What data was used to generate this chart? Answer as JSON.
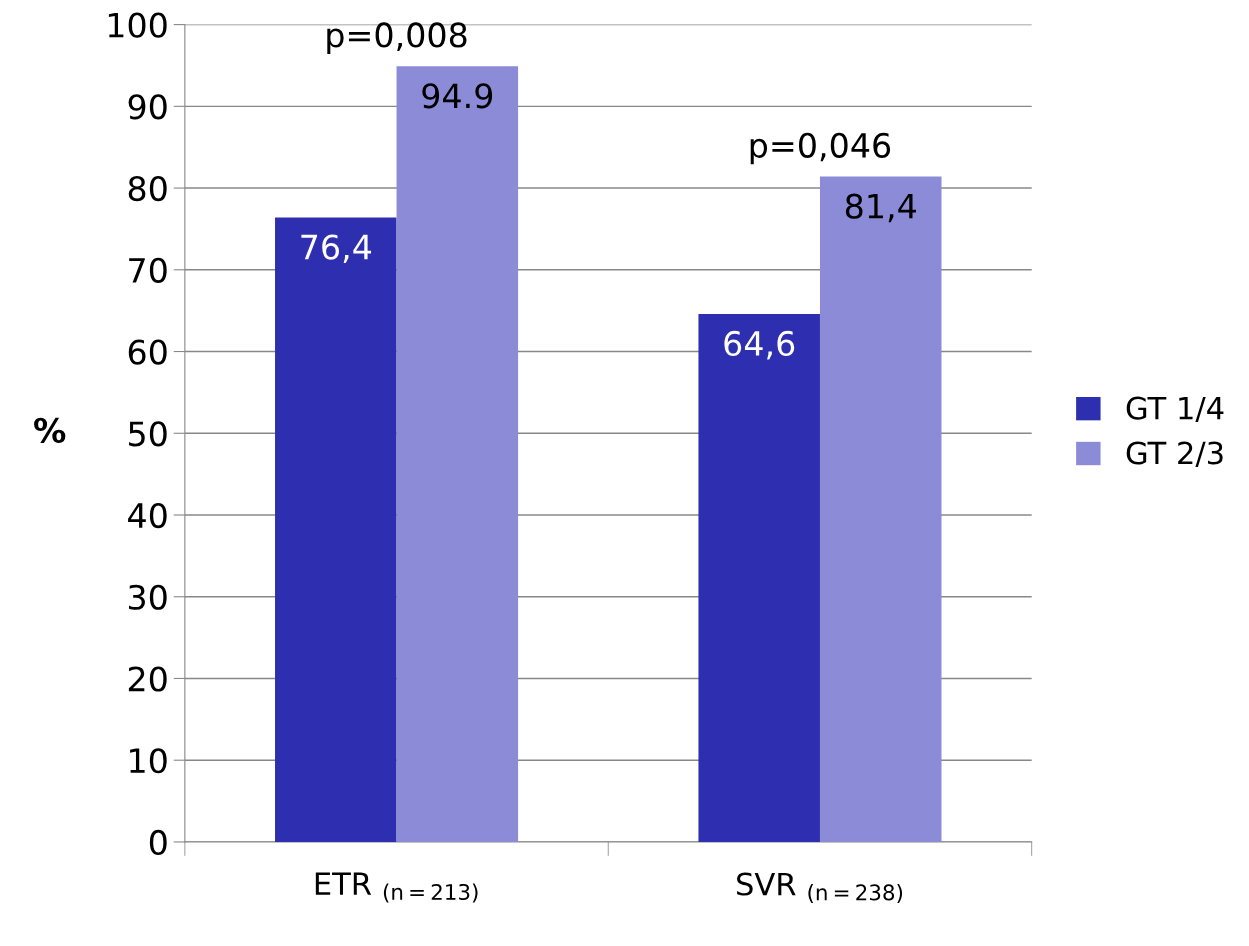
{
  "chart_data": {
    "type": "bar",
    "ylabel": "%",
    "categories": [
      "ETR $_{(n=213)}$",
      "SVR $_{(n=238)}$"
    ],
    "series": [
      {
        "name": "GT 1/4",
        "color": "#2e2eb0",
        "values": [
          76.4,
          64.6
        ],
        "value_labels": [
          "76,4",
          "64,6"
        ]
      },
      {
        "name": "GT 2/3",
        "color": "#8b8bd8",
        "values": [
          94.9,
          81.4
        ],
        "value_labels": [
          "94.9",
          "81,4"
        ]
      }
    ],
    "annotations": [
      "p=0,008",
      "p=0,046"
    ],
    "ylim": [
      0,
      100
    ],
    "yticks": [
      0,
      10,
      20,
      30,
      40,
      50,
      60,
      70,
      80,
      90,
      100
    ],
    "grid": "y",
    "legend": "right"
  }
}
